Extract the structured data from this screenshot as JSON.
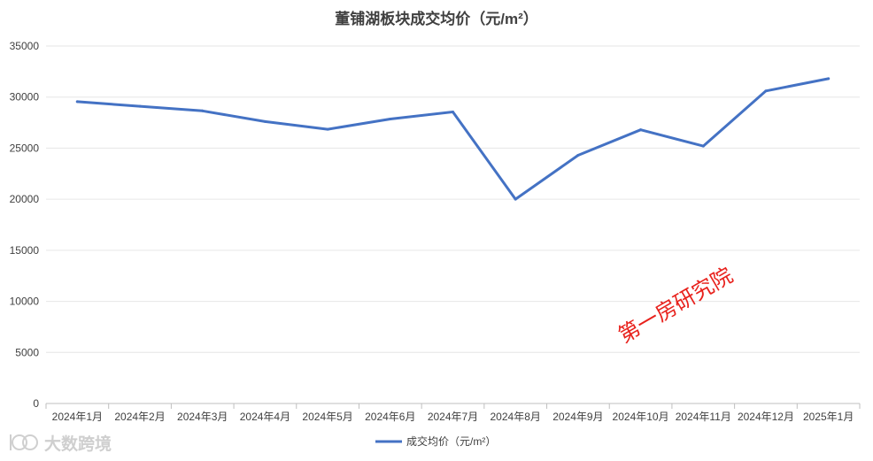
{
  "chart_data": {
    "type": "line",
    "title": "董铺湖板块成交均价（元/m²）",
    "xlabel": "",
    "ylabel": "",
    "categories": [
      "2024年1月",
      "2024年2月",
      "2024年3月",
      "2024年4月",
      "2024年5月",
      "2024年6月",
      "2024年7月",
      "2024年8月",
      "2024年9月",
      "2024年10月",
      "2024年11月",
      "2024年12月",
      "2025年1月"
    ],
    "series": [
      {
        "name": "成交均价（元/m²）",
        "color": "#4472c4",
        "values": [
          29550,
          29100,
          28650,
          27600,
          26850,
          27850,
          28550,
          20000,
          24300,
          26800,
          25200,
          30600,
          31800
        ]
      }
    ],
    "ylim": [
      0,
      35000
    ],
    "yticks": [
      0,
      5000,
      10000,
      15000,
      20000,
      25000,
      30000,
      35000
    ],
    "grid": true,
    "legend_position": "bottom"
  },
  "watermark": "第一房研究院",
  "logo_text": "大数跨境",
  "colors": {
    "line": "#4472c4",
    "watermark": "#e8211c",
    "grid": "#e6e6e6"
  }
}
